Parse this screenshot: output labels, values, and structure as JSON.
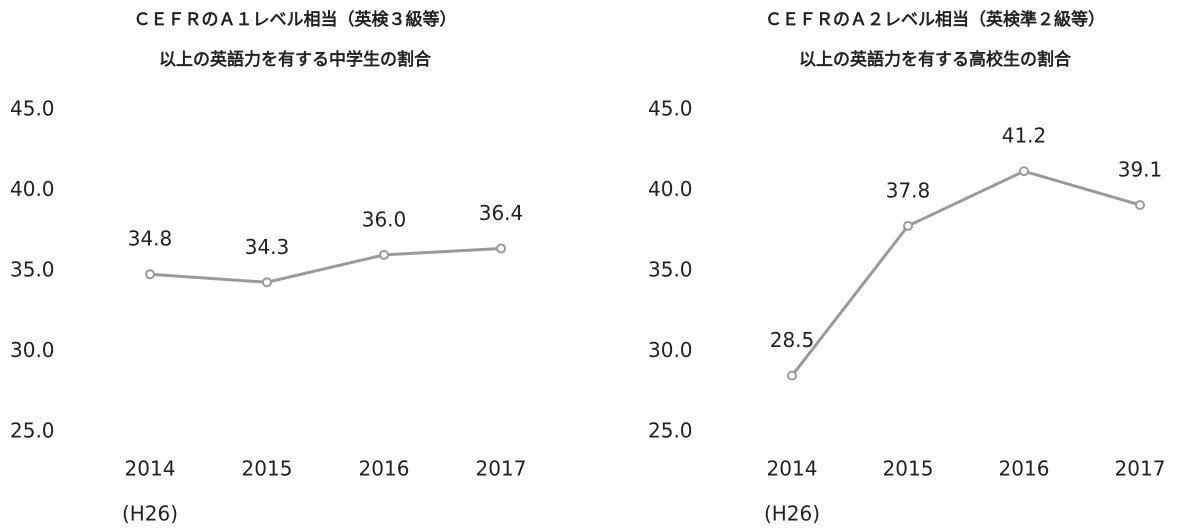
{
  "chart_data": [
    {
      "type": "line",
      "title": "ＣＥＦＲのＡ１レベル相当（英検３級等）",
      "subtitle": "以上の英語力を有する中学生の割合",
      "categories": [
        "2014",
        "2015",
        "2016",
        "2017"
      ],
      "annotation": "(H26)",
      "series": [
        {
          "name": null,
          "color": "#9a9a9a",
          "values": [
            34.8,
            34.3,
            36.0,
            36.4
          ],
          "value_labels": [
            "34.8",
            "34.3",
            "36.0",
            "36.4"
          ]
        }
      ],
      "ylim": [
        25,
        45
      ],
      "yticks": [
        {
          "value": 25,
          "label": "25.0"
        },
        {
          "value": 30,
          "label": "30.0"
        },
        {
          "value": 35,
          "label": "35.0"
        },
        {
          "value": 40,
          "label": "40.0"
        },
        {
          "value": 45,
          "label": "45.0"
        }
      ],
      "grid": false
    },
    {
      "type": "line",
      "title": "ＣＥＦＲのＡ２レベル相当（英検準２級等）",
      "subtitle": "以上の英語力を有する高校生の割合",
      "categories": [
        "2014",
        "2015",
        "2016",
        "2017"
      ],
      "annotation": "(H26)",
      "series": [
        {
          "name": null,
          "color": "#9a9a9a",
          "values": [
            28.5,
            37.8,
            41.2,
            39.1
          ],
          "value_labels": [
            "28.5",
            "37.8",
            "41.2",
            "39.1"
          ]
        }
      ],
      "ylim": [
        25,
        45
      ],
      "yticks": [
        {
          "value": 25,
          "label": "25.0"
        },
        {
          "value": 30,
          "label": "30.0"
        },
        {
          "value": 35,
          "label": "35.0"
        },
        {
          "value": 40,
          "label": "40.0"
        },
        {
          "value": 45,
          "label": "45.0"
        }
      ],
      "grid": false
    }
  ]
}
